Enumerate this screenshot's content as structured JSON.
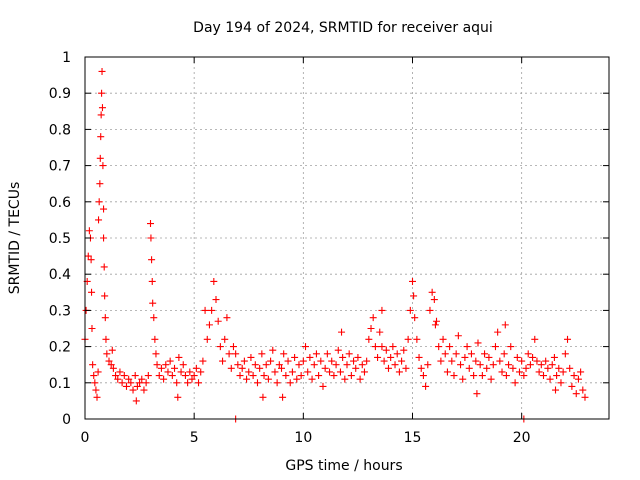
{
  "chart_data": {
    "type": "scatter",
    "title": "Day 194 of 2024, SRMTID for receiver aqui",
    "xlabel": "GPS time / hours",
    "ylabel": "SRMTID / TECUs",
    "xlim": [
      0,
      24
    ],
    "ylim": [
      0,
      1
    ],
    "xticks": [
      0,
      5,
      10,
      15,
      20
    ],
    "yticks": [
      0,
      0.1,
      0.2,
      0.3,
      0.4,
      0.5,
      0.6,
      0.7,
      0.8,
      0.9,
      1
    ],
    "xtick_labels": [
      "0",
      "5",
      "10",
      "15",
      "20"
    ],
    "ytick_labels": [
      "0",
      "0.1",
      "0.2",
      "0.3",
      "0.4",
      "0.5",
      "0.6",
      "0.7",
      "0.8",
      "0.9",
      "1"
    ],
    "grid": true,
    "marker": "plus",
    "color": "#ff0000",
    "series": [
      {
        "name": "SRMTID",
        "points": [
          [
            0.0,
            0.22
          ],
          [
            0.05,
            0.3
          ],
          [
            0.1,
            0.38
          ],
          [
            0.15,
            0.45
          ],
          [
            0.2,
            0.52
          ],
          [
            0.25,
            0.5
          ],
          [
            0.28,
            0.44
          ],
          [
            0.3,
            0.35
          ],
          [
            0.32,
            0.25
          ],
          [
            0.35,
            0.15
          ],
          [
            0.4,
            0.12
          ],
          [
            0.45,
            0.1
          ],
          [
            0.5,
            0.08
          ],
          [
            0.55,
            0.06
          ],
          [
            0.6,
            0.13
          ],
          [
            0.62,
            0.55
          ],
          [
            0.65,
            0.6
          ],
          [
            0.68,
            0.65
          ],
          [
            0.7,
            0.72
          ],
          [
            0.72,
            0.78
          ],
          [
            0.74,
            0.84
          ],
          [
            0.76,
            0.9
          ],
          [
            0.78,
            0.96
          ],
          [
            0.8,
            0.86
          ],
          [
            0.82,
            0.7
          ],
          [
            0.85,
            0.5
          ],
          [
            0.88,
            0.42
          ],
          [
            0.9,
            0.34
          ],
          [
            0.93,
            0.28
          ],
          [
            0.96,
            0.22
          ],
          [
            1.0,
            0.18
          ],
          [
            1.1,
            0.16
          ],
          [
            1.2,
            0.15
          ],
          [
            1.3,
            0.14
          ],
          [
            1.4,
            0.12
          ],
          [
            1.5,
            0.11
          ],
          [
            1.6,
            0.13
          ],
          [
            1.7,
            0.1
          ],
          [
            1.8,
            0.12
          ],
          [
            1.9,
            0.09
          ],
          [
            2.0,
            0.11
          ],
          [
            2.1,
            0.1
          ],
          [
            2.2,
            0.08
          ],
          [
            2.3,
            0.12
          ],
          [
            2.4,
            0.09
          ],
          [
            2.5,
            0.1
          ],
          [
            2.6,
            0.11
          ],
          [
            2.7,
            0.08
          ],
          [
            2.8,
            0.1
          ],
          [
            2.9,
            0.12
          ],
          [
            3.0,
            0.54
          ],
          [
            3.02,
            0.5
          ],
          [
            3.05,
            0.44
          ],
          [
            3.08,
            0.38
          ],
          [
            3.1,
            0.32
          ],
          [
            3.15,
            0.28
          ],
          [
            3.2,
            0.22
          ],
          [
            3.25,
            0.18
          ],
          [
            3.3,
            0.15
          ],
          [
            3.4,
            0.12
          ],
          [
            3.5,
            0.14
          ],
          [
            3.6,
            0.11
          ],
          [
            3.7,
            0.15
          ],
          [
            3.8,
            0.13
          ],
          [
            3.9,
            0.16
          ],
          [
            4.0,
            0.12
          ],
          [
            4.1,
            0.14
          ],
          [
            4.2,
            0.1
          ],
          [
            4.3,
            0.17
          ],
          [
            4.4,
            0.13
          ],
          [
            4.5,
            0.15
          ],
          [
            4.6,
            0.12
          ],
          [
            4.7,
            0.1
          ],
          [
            4.8,
            0.13
          ],
          [
            4.9,
            0.11
          ],
          [
            5.0,
            0.12
          ],
          [
            5.1,
            0.14
          ],
          [
            5.2,
            0.1
          ],
          [
            5.3,
            0.13
          ],
          [
            5.4,
            0.16
          ],
          [
            5.5,
            0.3
          ],
          [
            5.6,
            0.22
          ],
          [
            5.7,
            0.26
          ],
          [
            5.8,
            0.3
          ],
          [
            5.9,
            0.38
          ],
          [
            6.0,
            0.33
          ],
          [
            6.1,
            0.27
          ],
          [
            6.2,
            0.2
          ],
          [
            6.3,
            0.16
          ],
          [
            6.4,
            0.22
          ],
          [
            6.5,
            0.28
          ],
          [
            6.6,
            0.18
          ],
          [
            6.7,
            0.14
          ],
          [
            6.8,
            0.2
          ],
          [
            6.9,
            0.18
          ],
          [
            7.0,
            0.15
          ],
          [
            7.1,
            0.12
          ],
          [
            7.2,
            0.14
          ],
          [
            7.3,
            0.16
          ],
          [
            7.4,
            0.11
          ],
          [
            7.5,
            0.13
          ],
          [
            7.6,
            0.17
          ],
          [
            7.7,
            0.12
          ],
          [
            7.8,
            0.15
          ],
          [
            7.9,
            0.1
          ],
          [
            8.0,
            0.14
          ],
          [
            8.1,
            0.18
          ],
          [
            8.2,
            0.12
          ],
          [
            8.3,
            0.15
          ],
          [
            8.4,
            0.11
          ],
          [
            8.5,
            0.16
          ],
          [
            8.6,
            0.19
          ],
          [
            8.7,
            0.13
          ],
          [
            8.8,
            0.1
          ],
          [
            8.9,
            0.15
          ],
          [
            9.0,
            0.14
          ],
          [
            9.1,
            0.18
          ],
          [
            9.2,
            0.12
          ],
          [
            9.3,
            0.16
          ],
          [
            9.4,
            0.1
          ],
          [
            9.5,
            0.13
          ],
          [
            9.6,
            0.17
          ],
          [
            9.7,
            0.11
          ],
          [
            9.8,
            0.15
          ],
          [
            9.9,
            0.12
          ],
          [
            10.0,
            0.16
          ],
          [
            10.1,
            0.2
          ],
          [
            10.2,
            0.13
          ],
          [
            10.3,
            0.17
          ],
          [
            10.4,
            0.11
          ],
          [
            10.5,
            0.15
          ],
          [
            10.6,
            0.18
          ],
          [
            10.7,
            0.12
          ],
          [
            10.8,
            0.16
          ],
          [
            10.9,
            0.09
          ],
          [
            11.0,
            0.14
          ],
          [
            11.1,
            0.18
          ],
          [
            11.2,
            0.13
          ],
          [
            11.3,
            0.16
          ],
          [
            11.4,
            0.12
          ],
          [
            11.5,
            0.15
          ],
          [
            11.6,
            0.19
          ],
          [
            11.7,
            0.13
          ],
          [
            11.8,
            0.17
          ],
          [
            11.9,
            0.11
          ],
          [
            12.0,
            0.15
          ],
          [
            12.1,
            0.18
          ],
          [
            12.2,
            0.12
          ],
          [
            12.3,
            0.16
          ],
          [
            12.4,
            0.14
          ],
          [
            12.5,
            0.17
          ],
          [
            12.6,
            0.11
          ],
          [
            12.7,
            0.15
          ],
          [
            12.8,
            0.13
          ],
          [
            12.9,
            0.16
          ],
          [
            13.0,
            0.22
          ],
          [
            13.1,
            0.25
          ],
          [
            13.2,
            0.28
          ],
          [
            13.3,
            0.2
          ],
          [
            13.4,
            0.17
          ],
          [
            13.5,
            0.24
          ],
          [
            13.6,
            0.2
          ],
          [
            13.7,
            0.16
          ],
          [
            13.8,
            0.19
          ],
          [
            13.9,
            0.14
          ],
          [
            14.0,
            0.17
          ],
          [
            14.1,
            0.2
          ],
          [
            14.2,
            0.15
          ],
          [
            14.3,
            0.18
          ],
          [
            14.4,
            0.13
          ],
          [
            14.5,
            0.16
          ],
          [
            14.6,
            0.19
          ],
          [
            14.7,
            0.14
          ],
          [
            14.8,
            0.22
          ],
          [
            14.9,
            0.3
          ],
          [
            15.0,
            0.38
          ],
          [
            15.05,
            0.34
          ],
          [
            15.1,
            0.28
          ],
          [
            15.2,
            0.22
          ],
          [
            15.3,
            0.17
          ],
          [
            15.4,
            0.14
          ],
          [
            15.5,
            0.12
          ],
          [
            15.6,
            0.09
          ],
          [
            15.7,
            0.15
          ],
          [
            15.8,
            0.3
          ],
          [
            15.9,
            0.35
          ],
          [
            16.0,
            0.33
          ],
          [
            16.1,
            0.27
          ],
          [
            16.2,
            0.2
          ],
          [
            16.3,
            0.16
          ],
          [
            16.4,
            0.22
          ],
          [
            16.5,
            0.18
          ],
          [
            16.6,
            0.13
          ],
          [
            16.7,
            0.2
          ],
          [
            16.8,
            0.16
          ],
          [
            16.9,
            0.12
          ],
          [
            17.0,
            0.18
          ],
          [
            17.1,
            0.23
          ],
          [
            17.2,
            0.15
          ],
          [
            17.3,
            0.11
          ],
          [
            17.4,
            0.17
          ],
          [
            17.5,
            0.2
          ],
          [
            17.6,
            0.14
          ],
          [
            17.7,
            0.18
          ],
          [
            17.8,
            0.12
          ],
          [
            17.9,
            0.16
          ],
          [
            18.0,
            0.21
          ],
          [
            18.1,
            0.15
          ],
          [
            18.2,
            0.12
          ],
          [
            18.3,
            0.18
          ],
          [
            18.4,
            0.14
          ],
          [
            18.5,
            0.17
          ],
          [
            18.6,
            0.11
          ],
          [
            18.7,
            0.15
          ],
          [
            18.8,
            0.2
          ],
          [
            18.9,
            0.24
          ],
          [
            19.0,
            0.16
          ],
          [
            19.1,
            0.13
          ],
          [
            19.2,
            0.18
          ],
          [
            19.3,
            0.12
          ],
          [
            19.4,
            0.15
          ],
          [
            19.5,
            0.2
          ],
          [
            19.6,
            0.14
          ],
          [
            19.7,
            0.1
          ],
          [
            19.8,
            0.17
          ],
          [
            19.9,
            0.13
          ],
          [
            20.0,
            0.16
          ],
          [
            20.1,
            0.12
          ],
          [
            20.2,
            0.14
          ],
          [
            20.3,
            0.18
          ],
          [
            20.4,
            0.15
          ],
          [
            20.5,
            0.17
          ],
          [
            20.6,
            0.22
          ],
          [
            20.7,
            0.16
          ],
          [
            20.8,
            0.13
          ],
          [
            20.9,
            0.15
          ],
          [
            21.0,
            0.12
          ],
          [
            21.1,
            0.16
          ],
          [
            21.2,
            0.14
          ],
          [
            21.3,
            0.11
          ],
          [
            21.4,
            0.15
          ],
          [
            21.5,
            0.17
          ],
          [
            21.6,
            0.12
          ],
          [
            21.7,
            0.14
          ],
          [
            21.8,
            0.1
          ],
          [
            21.9,
            0.13
          ],
          [
            22.0,
            0.18
          ],
          [
            22.1,
            0.22
          ],
          [
            22.2,
            0.14
          ],
          [
            22.3,
            0.09
          ],
          [
            22.4,
            0.12
          ],
          [
            22.5,
            0.07
          ],
          [
            22.6,
            0.11
          ],
          [
            22.7,
            0.13
          ],
          [
            22.8,
            0.08
          ],
          [
            22.9,
            0.06
          ],
          [
            6.9,
            0.0
          ],
          [
            20.1,
            0.0
          ],
          [
            13.6,
            0.3
          ],
          [
            0.85,
            0.58
          ],
          [
            2.35,
            0.05
          ],
          [
            1.25,
            0.19
          ],
          [
            4.25,
            0.06
          ],
          [
            9.05,
            0.06
          ],
          [
            11.75,
            0.24
          ],
          [
            16.05,
            0.26
          ],
          [
            17.95,
            0.07
          ],
          [
            19.25,
            0.26
          ],
          [
            21.55,
            0.08
          ],
          [
            8.15,
            0.06
          ]
        ]
      }
    ]
  }
}
